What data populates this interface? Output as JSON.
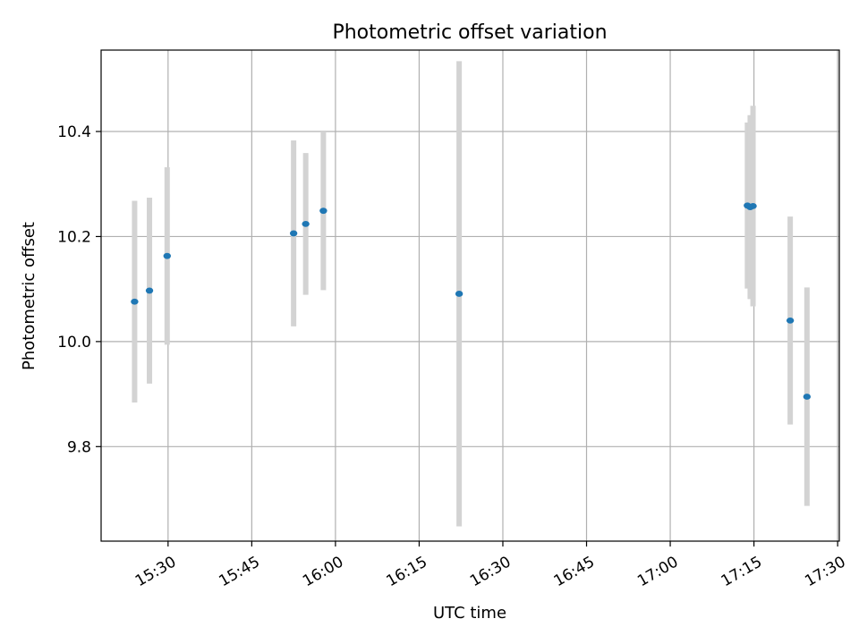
{
  "chart_data": {
    "type": "scatter",
    "title": "Photometric offset variation",
    "xlabel": "UTC time",
    "ylabel": "Photometric offset",
    "x_axis_type": "time",
    "xlim": [
      "15:18",
      "17:30.3"
    ],
    "ylim": [
      9.62,
      10.555
    ],
    "grid": true,
    "x_ticks": [
      "15:30",
      "15:45",
      "16:00",
      "16:15",
      "16:30",
      "16:45",
      "17:00",
      "17:15",
      "17:30"
    ],
    "y_ticks": [
      9.8,
      10.0,
      10.2,
      10.4
    ],
    "y_tick_labels": [
      "9.8",
      "10.0",
      "10.2",
      "10.4"
    ],
    "marker_color": "#1f77b4",
    "errorbar_color": "#d3d3d3",
    "series": [
      {
        "points": [
          {
            "x": "15:24:00",
            "y": 10.076,
            "yerr": 0.192
          },
          {
            "x": "15:26:40",
            "y": 10.097,
            "yerr": 0.177
          },
          {
            "x": "15:29:50",
            "y": 10.163,
            "yerr": 0.169
          },
          {
            "x": "15:52:30",
            "y": 10.206,
            "yerr": 0.177
          },
          {
            "x": "15:54:40",
            "y": 10.224,
            "yerr": 0.135
          },
          {
            "x": "15:57:50",
            "y": 10.249,
            "yerr": 0.151
          },
          {
            "x": "16:22:10",
            "y": 10.091,
            "yerr": 0.443
          },
          {
            "x": "17:13:50",
            "y": 10.259,
            "yerr": 0.158
          },
          {
            "x": "17:14:20",
            "y": 10.256,
            "yerr": 0.175
          },
          {
            "x": "17:14:50",
            "y": 10.258,
            "yerr": 0.191
          },
          {
            "x": "17:21:30",
            "y": 10.04,
            "yerr": 0.198
          },
          {
            "x": "17:24:30",
            "y": 9.895,
            "yerr": 0.208
          }
        ]
      }
    ]
  }
}
